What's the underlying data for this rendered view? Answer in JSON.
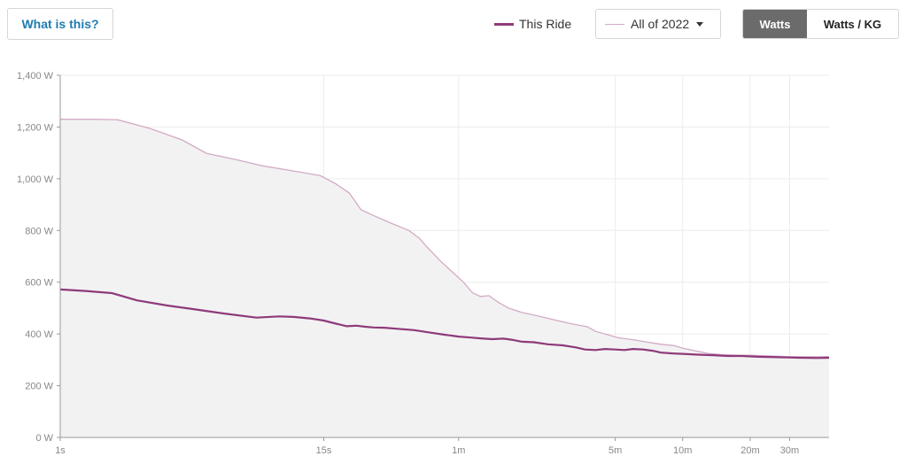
{
  "header": {
    "what_is_this": "What is this?",
    "legend_this_ride": "This Ride",
    "compare_selected": "All of 2022",
    "toggle": {
      "watts": "Watts",
      "watts_per_kg": "Watts / KG",
      "active": "watts"
    }
  },
  "colors": {
    "this_ride": "#8e3a7a",
    "all_of_2022_line": "#d4aac6",
    "all_of_2022_fill": "#f2f2f3",
    "grid": "#ececec",
    "link": "#1f7cb1"
  },
  "chart_data": {
    "type": "line",
    "x_scale": "log",
    "x_unit": "seconds",
    "y_unit": "W",
    "ylim": [
      0,
      1400
    ],
    "y_ticks": [
      {
        "value": 0,
        "label": "0 W"
      },
      {
        "value": 200,
        "label": "200 W"
      },
      {
        "value": 400,
        "label": "400 W"
      },
      {
        "value": 600,
        "label": "600 W"
      },
      {
        "value": 800,
        "label": "800 W"
      },
      {
        "value": 1000,
        "label": "1,000 W"
      },
      {
        "value": 1200,
        "label": "1,200 W"
      },
      {
        "value": 1400,
        "label": "1,400 W"
      }
    ],
    "x_ticks": [
      {
        "value": 1,
        "label": "1s"
      },
      {
        "value": 15,
        "label": "15s"
      },
      {
        "value": 60,
        "label": "1m"
      },
      {
        "value": 300,
        "label": "5m"
      },
      {
        "value": 600,
        "label": "10m"
      },
      {
        "value": 1200,
        "label": "20m"
      },
      {
        "value": 1800,
        "label": "30m"
      }
    ],
    "grid": true,
    "series": [
      {
        "name": "All of 2022",
        "style": "area",
        "points": [
          [
            1,
            1230
          ],
          [
            1.4,
            1230
          ],
          [
            1.8,
            1228
          ],
          [
            2.5,
            1195
          ],
          [
            3.5,
            1150
          ],
          [
            4.5,
            1098
          ],
          [
            6,
            1075
          ],
          [
            8,
            1050
          ],
          [
            11,
            1030
          ],
          [
            14.5,
            1012
          ],
          [
            17,
            980
          ],
          [
            19.5,
            945
          ],
          [
            22,
            880
          ],
          [
            25,
            858
          ],
          [
            30,
            828
          ],
          [
            36,
            800
          ],
          [
            40,
            770
          ],
          [
            44,
            730
          ],
          [
            50,
            680
          ],
          [
            57,
            635
          ],
          [
            63,
            600
          ],
          [
            69,
            560
          ],
          [
            75,
            545
          ],
          [
            82,
            548
          ],
          [
            90,
            523
          ],
          [
            100,
            500
          ],
          [
            115,
            483
          ],
          [
            135,
            470
          ],
          [
            160,
            455
          ],
          [
            190,
            440
          ],
          [
            225,
            428
          ],
          [
            245,
            410
          ],
          [
            275,
            398
          ],
          [
            310,
            385
          ],
          [
            360,
            378
          ],
          [
            420,
            368
          ],
          [
            480,
            360
          ],
          [
            550,
            355
          ],
          [
            600,
            345
          ],
          [
            680,
            335
          ],
          [
            780,
            325
          ],
          [
            900,
            320
          ],
          [
            1050,
            318
          ],
          [
            1200,
            318
          ],
          [
            1500,
            315
          ],
          [
            1800,
            312
          ],
          [
            2200,
            312
          ],
          [
            2700,
            313
          ]
        ]
      },
      {
        "name": "This Ride",
        "style": "line",
        "points": [
          [
            1,
            572
          ],
          [
            1.3,
            566
          ],
          [
            1.7,
            558
          ],
          [
            2.2,
            530
          ],
          [
            3,
            510
          ],
          [
            4,
            495
          ],
          [
            5.5,
            478
          ],
          [
            7.5,
            463
          ],
          [
            9.5,
            468
          ],
          [
            11,
            466
          ],
          [
            13,
            460
          ],
          [
            15,
            452
          ],
          [
            17,
            440
          ],
          [
            19,
            430
          ],
          [
            21,
            432
          ],
          [
            23,
            428
          ],
          [
            25,
            425
          ],
          [
            28,
            424
          ],
          [
            32,
            420
          ],
          [
            38,
            415
          ],
          [
            45,
            405
          ],
          [
            52,
            397
          ],
          [
            60,
            390
          ],
          [
            68,
            386
          ],
          [
            75,
            383
          ],
          [
            85,
            380
          ],
          [
            95,
            382
          ],
          [
            105,
            377
          ],
          [
            115,
            370
          ],
          [
            130,
            368
          ],
          [
            150,
            360
          ],
          [
            175,
            356
          ],
          [
            200,
            348
          ],
          [
            220,
            340
          ],
          [
            245,
            338
          ],
          [
            270,
            342
          ],
          [
            300,
            340
          ],
          [
            330,
            338
          ],
          [
            360,
            342
          ],
          [
            400,
            340
          ],
          [
            440,
            335
          ],
          [
            480,
            328
          ],
          [
            540,
            325
          ],
          [
            600,
            323
          ],
          [
            700,
            320
          ],
          [
            820,
            318
          ],
          [
            950,
            315
          ],
          [
            1100,
            315
          ],
          [
            1300,
            312
          ],
          [
            1600,
            310
          ],
          [
            2000,
            308
          ],
          [
            2400,
            307
          ],
          [
            2700,
            308
          ]
        ]
      }
    ]
  }
}
